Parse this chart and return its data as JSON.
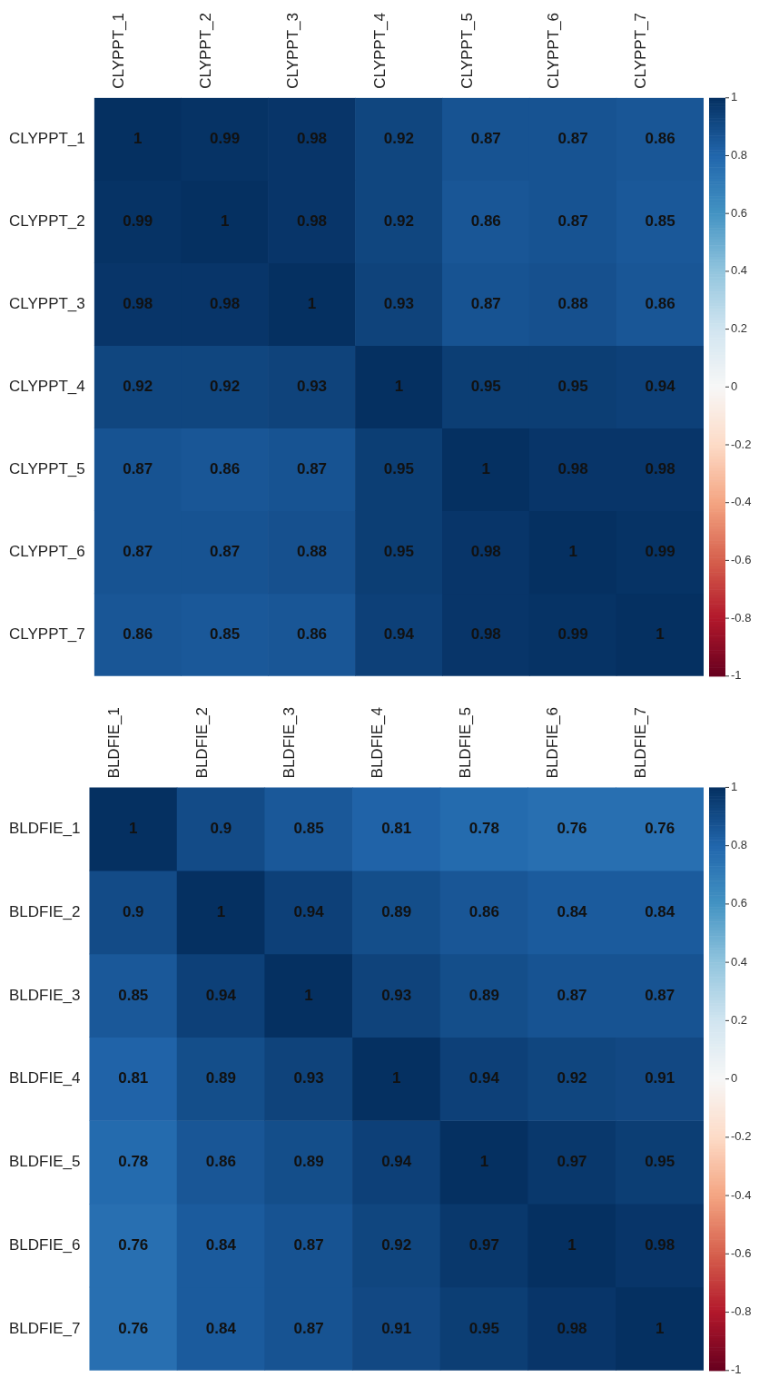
{
  "chart_data": [
    {
      "type": "heatmap",
      "categories": [
        "CLYPPT_1",
        "CLYPPT_2",
        "CLYPPT_3",
        "CLYPPT_4",
        "CLYPPT_5",
        "CLYPPT_6",
        "CLYPPT_7"
      ],
      "y_categories": [
        "CLYPPT_1",
        "CLYPPT_2",
        "CLYPPT_3",
        "CLYPPT_4",
        "CLYPPT_5",
        "CLYPPT_6",
        "CLYPPT_7"
      ],
      "cells": [
        [
          1,
          0.99,
          0.98,
          0.92,
          0.87,
          0.87,
          0.86
        ],
        [
          0.99,
          1,
          0.98,
          0.92,
          0.86,
          0.87,
          0.85
        ],
        [
          0.98,
          0.98,
          1,
          0.93,
          0.87,
          0.88,
          0.86
        ],
        [
          0.92,
          0.92,
          0.93,
          1,
          0.95,
          0.95,
          0.94
        ],
        [
          0.87,
          0.86,
          0.87,
          0.95,
          1,
          0.98,
          0.98
        ],
        [
          0.87,
          0.87,
          0.88,
          0.95,
          0.98,
          1,
          0.99
        ],
        [
          0.86,
          0.85,
          0.86,
          0.94,
          0.98,
          0.99,
          1
        ]
      ],
      "clim": [
        -1,
        1
      ],
      "cticks": [
        -1,
        -0.8,
        -0.6,
        -0.4,
        -0.2,
        0,
        0.2,
        0.4,
        0.6,
        0.8,
        1
      ],
      "data_labels": true
    },
    {
      "type": "heatmap",
      "categories": [
        "BLDFIE_1",
        "BLDFIE_2",
        "BLDFIE_3",
        "BLDFIE_4",
        "BLDFIE_5",
        "BLDFIE_6",
        "BLDFIE_7"
      ],
      "y_categories": [
        "BLDFIE_1",
        "BLDFIE_2",
        "BLDFIE_3",
        "BLDFIE_4",
        "BLDFIE_5",
        "BLDFIE_6",
        "BLDFIE_7"
      ],
      "cells": [
        [
          1,
          0.9,
          0.85,
          0.81,
          0.78,
          0.76,
          0.76
        ],
        [
          0.9,
          1,
          0.94,
          0.89,
          0.86,
          0.84,
          0.84
        ],
        [
          0.85,
          0.94,
          1,
          0.93,
          0.89,
          0.87,
          0.87
        ],
        [
          0.81,
          0.89,
          0.93,
          1,
          0.94,
          0.92,
          0.91
        ],
        [
          0.78,
          0.86,
          0.89,
          0.94,
          1,
          0.97,
          0.95
        ],
        [
          0.76,
          0.84,
          0.87,
          0.92,
          0.97,
          1,
          0.98
        ],
        [
          0.76,
          0.84,
          0.87,
          0.91,
          0.95,
          0.98,
          1
        ]
      ],
      "clim": [
        -1,
        1
      ],
      "cticks": [
        -1,
        -0.8,
        -0.6,
        -0.4,
        -0.2,
        0,
        0.2,
        0.4,
        0.6,
        0.8,
        1
      ],
      "data_labels": true
    }
  ]
}
